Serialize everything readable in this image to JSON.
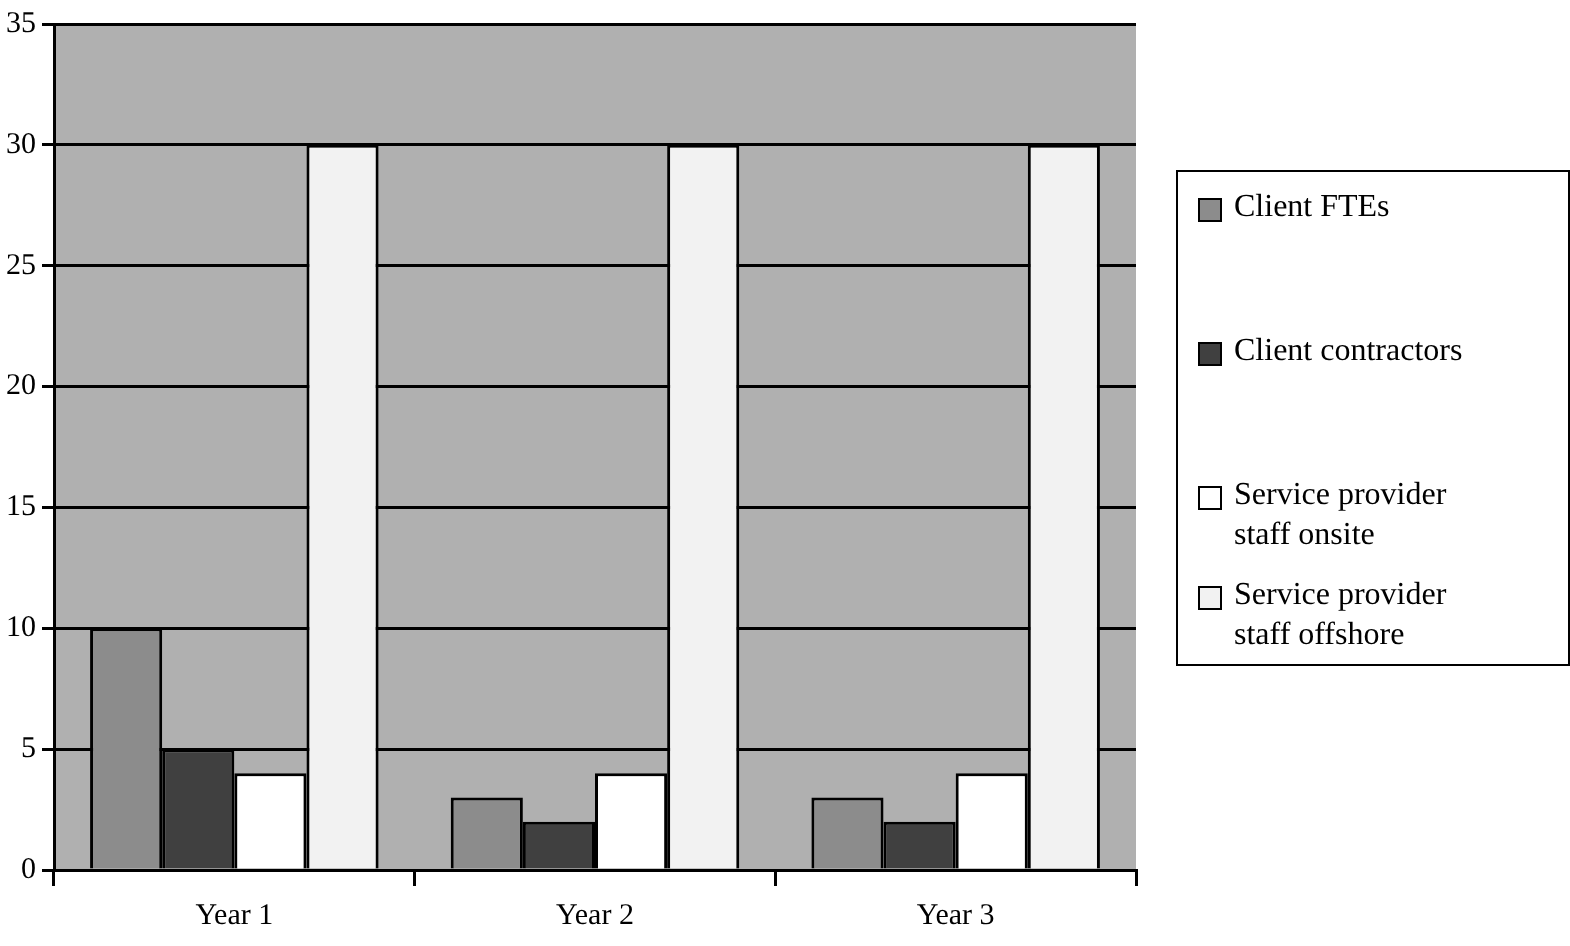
{
  "chart_data": {
    "type": "bar",
    "categories": [
      "Year 1",
      "Year 2",
      "Year 3"
    ],
    "series": [
      {
        "name": "Client FTEs",
        "color": "#8c8c8c",
        "values": [
          10,
          3,
          3
        ]
      },
      {
        "name": "Client contractors",
        "color": "#404040",
        "values": [
          5,
          2,
          2
        ]
      },
      {
        "name": "Service provider staff onsite",
        "color": "#ffffff",
        "values": [
          4,
          4,
          4
        ]
      },
      {
        "name": "Service provider staff offshore",
        "color": "#f2f2f2",
        "values": [
          30,
          30,
          30
        ]
      }
    ],
    "ylim": [
      0,
      35
    ],
    "yticks": [
      0,
      5,
      10,
      15,
      20,
      25,
      30,
      35
    ],
    "grid": "y",
    "legend": "right"
  }
}
